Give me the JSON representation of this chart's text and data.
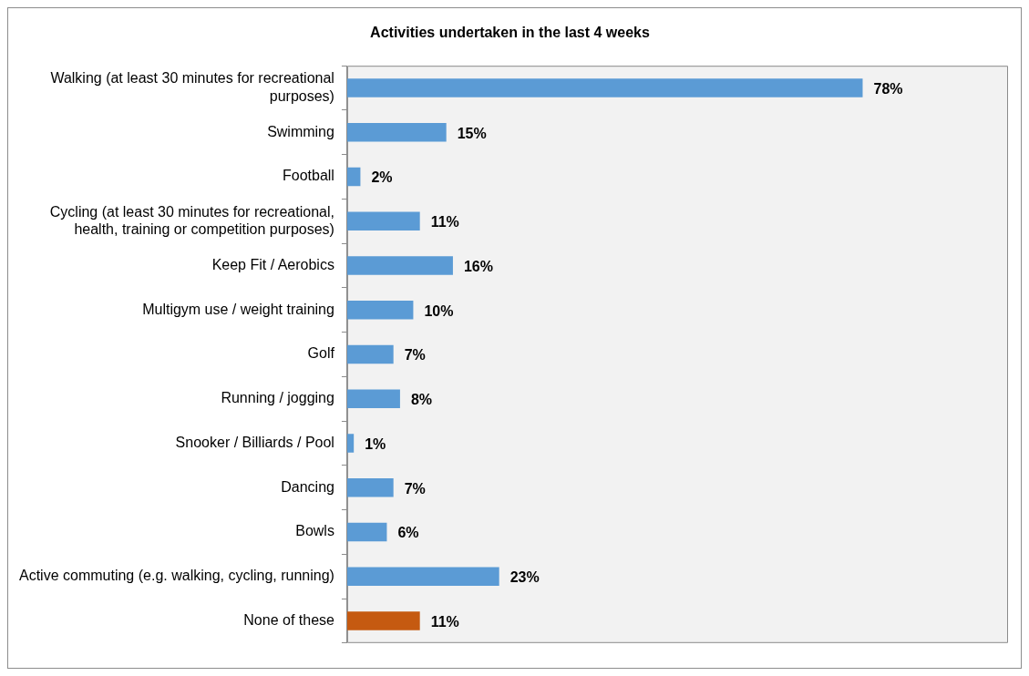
{
  "chart_data": {
    "type": "bar",
    "orientation": "horizontal",
    "title": "Activities undertaken in the last 4 weeks",
    "categories": [
      "Walking (at least 30 minutes for recreational purposes)",
      "Swimming",
      "Football",
      "Cycling (at least 30 minutes for recreational, health, training or competition purposes)",
      "Keep Fit / Aerobics",
      "Multigym use / weight training",
      "Golf",
      "Running / jogging",
      "Snooker / Billiards / Pool",
      "Dancing",
      "Bowls",
      "Active commuting (e.g. walking, cycling, running)",
      "None of these"
    ],
    "values": [
      78,
      15,
      2,
      11,
      16,
      10,
      7,
      8,
      1,
      7,
      6,
      23,
      11
    ],
    "value_labels": [
      "78%",
      "15%",
      "2%",
      "11%",
      "16%",
      "10%",
      "7%",
      "8%",
      "1%",
      "7%",
      "6%",
      "23%",
      "11%"
    ],
    "colors": [
      "#5b9bd5",
      "#5b9bd5",
      "#5b9bd5",
      "#5b9bd5",
      "#5b9bd5",
      "#5b9bd5",
      "#5b9bd5",
      "#5b9bd5",
      "#5b9bd5",
      "#5b9bd5",
      "#5b9bd5",
      "#5b9bd5",
      "#c55a11"
    ],
    "xlim": [
      0,
      100
    ],
    "tick_labels": "y"
  }
}
